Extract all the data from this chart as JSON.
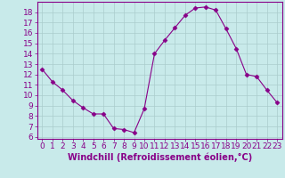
{
  "x": [
    0,
    1,
    2,
    3,
    4,
    5,
    6,
    7,
    8,
    9,
    10,
    11,
    12,
    13,
    14,
    15,
    16,
    17,
    18,
    19,
    20,
    21,
    22,
    23
  ],
  "y": [
    12.5,
    11.3,
    10.5,
    9.5,
    8.8,
    8.2,
    8.2,
    6.8,
    6.7,
    6.4,
    8.7,
    14.0,
    15.3,
    16.5,
    17.7,
    18.4,
    18.5,
    18.2,
    16.4,
    14.5,
    12.0,
    11.8,
    10.5,
    9.3
  ],
  "line_color": "#880088",
  "marker": "D",
  "marker_size": 2.5,
  "bg_color": "#c8eaea",
  "grid_color": "#aacccc",
  "xlabel": "Windchill (Refroidissement éolien,°C)",
  "xlim": [
    -0.5,
    23.5
  ],
  "ylim": [
    5.8,
    19.0
  ],
  "yticks": [
    6,
    7,
    8,
    9,
    10,
    11,
    12,
    13,
    14,
    15,
    16,
    17,
    18
  ],
  "xticks": [
    0,
    1,
    2,
    3,
    4,
    5,
    6,
    7,
    8,
    9,
    10,
    11,
    12,
    13,
    14,
    15,
    16,
    17,
    18,
    19,
    20,
    21,
    22,
    23
  ],
  "axis_color": "#880088",
  "tick_color": "#880088",
  "font_size": 6.5,
  "xlabel_font_size": 7.0
}
